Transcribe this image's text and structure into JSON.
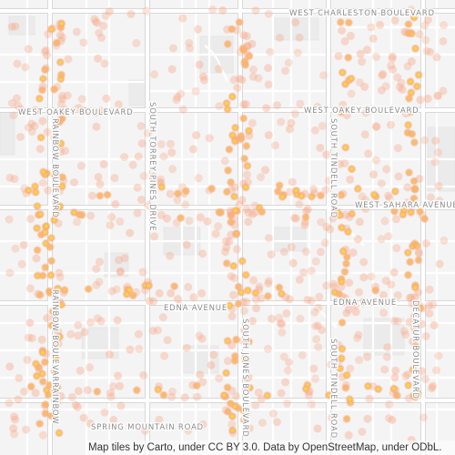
{
  "map": {
    "streets": [
      {
        "id": "west-charleston-boulevard",
        "label": "WEST CHARLESTON BOULEVARD"
      },
      {
        "id": "west-oakey-boulevard-west",
        "label": "WEST OAKEY BOULEVARD"
      },
      {
        "id": "west-oakey-boulevard-east",
        "label": "WEST OAKEY BOULEVARD"
      },
      {
        "id": "west-sahara-avenue",
        "label": "WEST SAHARA AVENUE"
      },
      {
        "id": "edna-avenue-west",
        "label": "EDNA AVENUE"
      },
      {
        "id": "edna-avenue-east",
        "label": "EDNA AVENUE"
      },
      {
        "id": "spring-mountain-road",
        "label": "SPRING MOUNTAIN ROAD"
      },
      {
        "id": "rainbow-boulevard-north",
        "label": "RAINBOW BOULEVARD"
      },
      {
        "id": "rainbow-boulevard-south",
        "label": "RAINBOW BOULEVARD"
      },
      {
        "id": "rainbow-boulevard-bottom",
        "label": "RAINBOW"
      },
      {
        "id": "south-torrey-pines-drive",
        "label": "SOUTH TORREY PINES DRIVE"
      },
      {
        "id": "south-jones-boulevard",
        "label": "SOUTH JONES BOULEVARD"
      },
      {
        "id": "south-tindell-road-north",
        "label": "SOUTH TINDELL ROAD"
      },
      {
        "id": "south-tindell-road-south",
        "label": "SOUTH TINDELL ROAD"
      },
      {
        "id": "decatur-boulevard",
        "label": "DECATUR BOULEVARD"
      }
    ],
    "colors": {
      "background": "#f4f4f4",
      "road": "#ffffff",
      "road_casing": "#dcdcdc",
      "block": "#e9e9e9",
      "heat_light": "#f7a98a",
      "heat_mid": "#f9b566",
      "heat_core": "#fdd835"
    }
  },
  "attribution": {
    "text": "Map tiles by Carto, under CC BY 3.0. Data by OpenStreetMap, under ODbL."
  }
}
